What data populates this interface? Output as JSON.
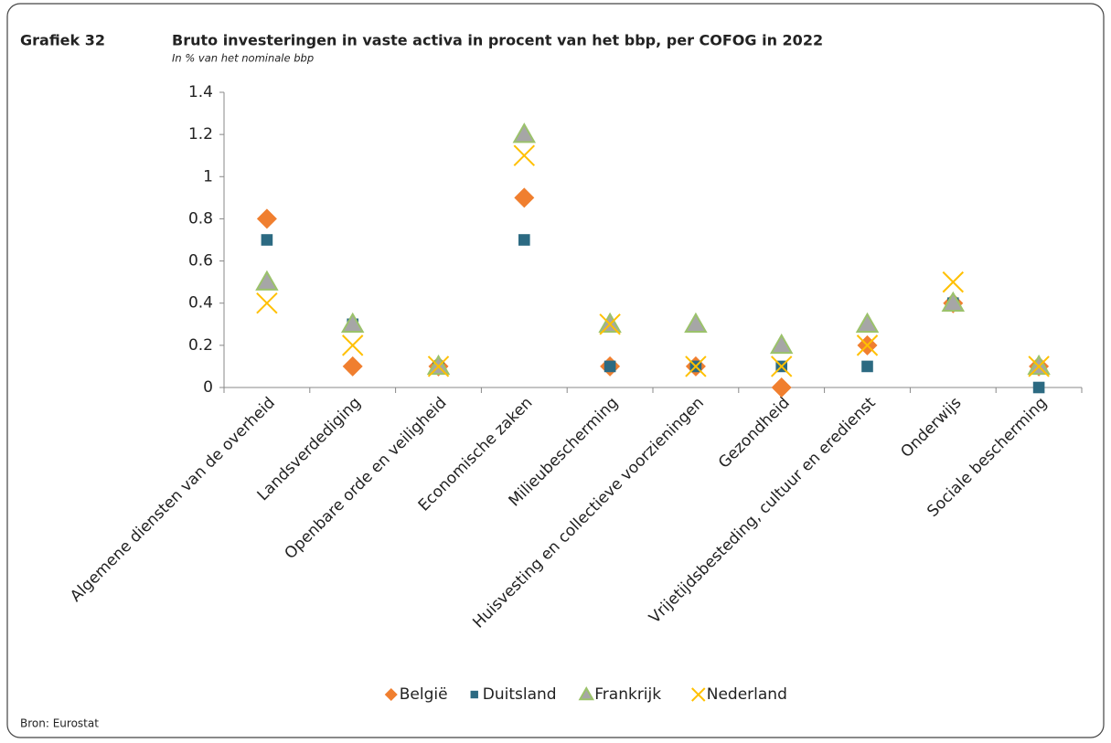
{
  "header": {
    "label": "Grafiek 32"
  },
  "footer": {
    "source": "Bron: Eurostat"
  },
  "chart_data": {
    "type": "scatter",
    "title": "Bruto investeringen in vaste activa in procent van het bbp, per COFOG in 2022",
    "subtitle": "In % van het nominale bbp",
    "categories": [
      "Algemene diensten van de overheid",
      "Landsverdediging",
      "Openbare orde en veiligheid",
      "Economische zaken",
      "Milieubescherming",
      "Huisvesting en collectieve voorzieningen",
      "Gezondheid",
      "Vrijetijdsbesteding, cultuur en eredienst",
      "Onderwijs",
      "Sociale bescherming"
    ],
    "series": [
      {
        "name": "België",
        "color": "#f07f2f",
        "marker": "diamond",
        "values": [
          0.8,
          0.1,
          0.1,
          0.9,
          0.1,
          0.1,
          0,
          0.2,
          0.4,
          0.1
        ]
      },
      {
        "name": "Duitsland",
        "color": "#2c6a82",
        "marker": "square",
        "values": [
          0.7,
          0.3,
          0.1,
          0.7,
          0.1,
          0.1,
          0.1,
          0.1,
          0.4,
          0
        ]
      },
      {
        "name": "Frankrijk",
        "color": "#9bc26b",
        "marker": "triangle",
        "values": [
          0.5,
          0.3,
          0.1,
          1.2,
          0.3,
          0.3,
          0.2,
          0.3,
          0.4,
          0.1
        ]
      },
      {
        "name": "Nederland",
        "color": "#ffc000",
        "marker": "cross",
        "values": [
          0.4,
          0.2,
          0.1,
          1.1,
          0.3,
          0.1,
          0.1,
          0.2,
          0.5,
          0.1
        ]
      }
    ],
    "ylim": [
      0,
      1.4
    ],
    "yticks": [
      0,
      0.2,
      0.4,
      0.6,
      0.8,
      1,
      1.2,
      1.4
    ],
    "grid": false,
    "legend": "bottom"
  }
}
